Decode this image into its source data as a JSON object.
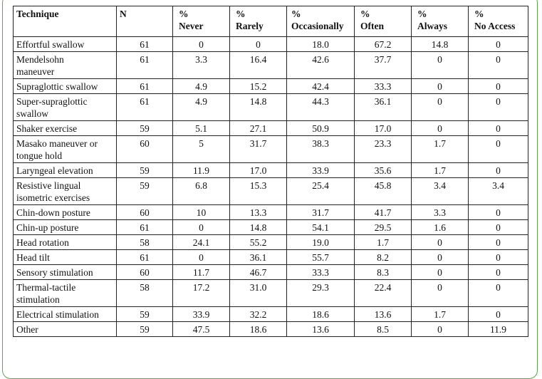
{
  "table": {
    "headers": [
      [
        "Technique"
      ],
      [
        "N"
      ],
      [
        "%",
        "Never"
      ],
      [
        "%",
        "Rarely"
      ],
      [
        "%",
        "Occasionally"
      ],
      [
        "%",
        "Often"
      ],
      [
        "%",
        "Always"
      ],
      [
        "%",
        "No Access"
      ]
    ],
    "rows": [
      [
        [
          "Effortful swallow"
        ],
        "61",
        "0",
        "0",
        "18.0",
        "67.2",
        "14.8",
        "0"
      ],
      [
        [
          "Mendelsohn",
          "maneuver"
        ],
        "61",
        "3.3",
        "16.4",
        "42.6",
        "37.7",
        "0",
        "0"
      ],
      [
        [
          "Supraglottic swallow"
        ],
        "61",
        "4.9",
        "15.2",
        "42.4",
        "33.3",
        "0",
        "0"
      ],
      [
        [
          "Super-supraglottic",
          "swallow"
        ],
        "61",
        "4.9",
        "14.8",
        "44.3",
        "36.1",
        "0",
        "0"
      ],
      [
        [
          "Shaker exercise"
        ],
        "59",
        "5.1",
        "27.1",
        "50.9",
        "17.0",
        "0",
        "0"
      ],
      [
        [
          "Masako maneuver or",
          "tongue hold"
        ],
        "60",
        "5",
        "31.7",
        "38.3",
        "23.3",
        "1.7",
        "0"
      ],
      [
        [
          "Laryngeal elevation"
        ],
        "59",
        "11.9",
        "17.0",
        "33.9",
        "35.6",
        "1.7",
        "0"
      ],
      [
        [
          "Resistive lingual",
          "isometric exercises"
        ],
        "59",
        "6.8",
        "15.3",
        "25.4",
        "45.8",
        "3.4",
        "3.4"
      ],
      [
        [
          "Chin-down posture"
        ],
        "60",
        "10",
        "13.3",
        "31.7",
        "41.7",
        "3.3",
        "0"
      ],
      [
        [
          "Chin-up posture"
        ],
        "61",
        "0",
        "14.8",
        "54.1",
        "29.5",
        "1.6",
        "0"
      ],
      [
        [
          "Head rotation"
        ],
        "58",
        "24.1",
        "55.2",
        "19.0",
        "1.7",
        "0",
        "0"
      ],
      [
        [
          "Head tilt"
        ],
        "61",
        "0",
        "36.1",
        "55.7",
        "8.2",
        "0",
        "0"
      ],
      [
        [
          "Sensory stimulation"
        ],
        "60",
        "11.7",
        "46.7",
        "33.3",
        "8.3",
        "0",
        "0"
      ],
      [
        [
          "Thermal-tactile",
          "stimulation"
        ],
        "58",
        "17.2",
        "31.0",
        "29.3",
        "22.4",
        "0",
        "0"
      ],
      [
        [
          "Electrical stimulation"
        ],
        "59",
        "33.9",
        "32.2",
        "18.6",
        "13.6",
        "1.7",
        "0"
      ],
      [
        [
          "Other"
        ],
        "59",
        "47.5",
        "18.6",
        "13.6",
        "8.5",
        "0",
        "11.9"
      ]
    ]
  }
}
